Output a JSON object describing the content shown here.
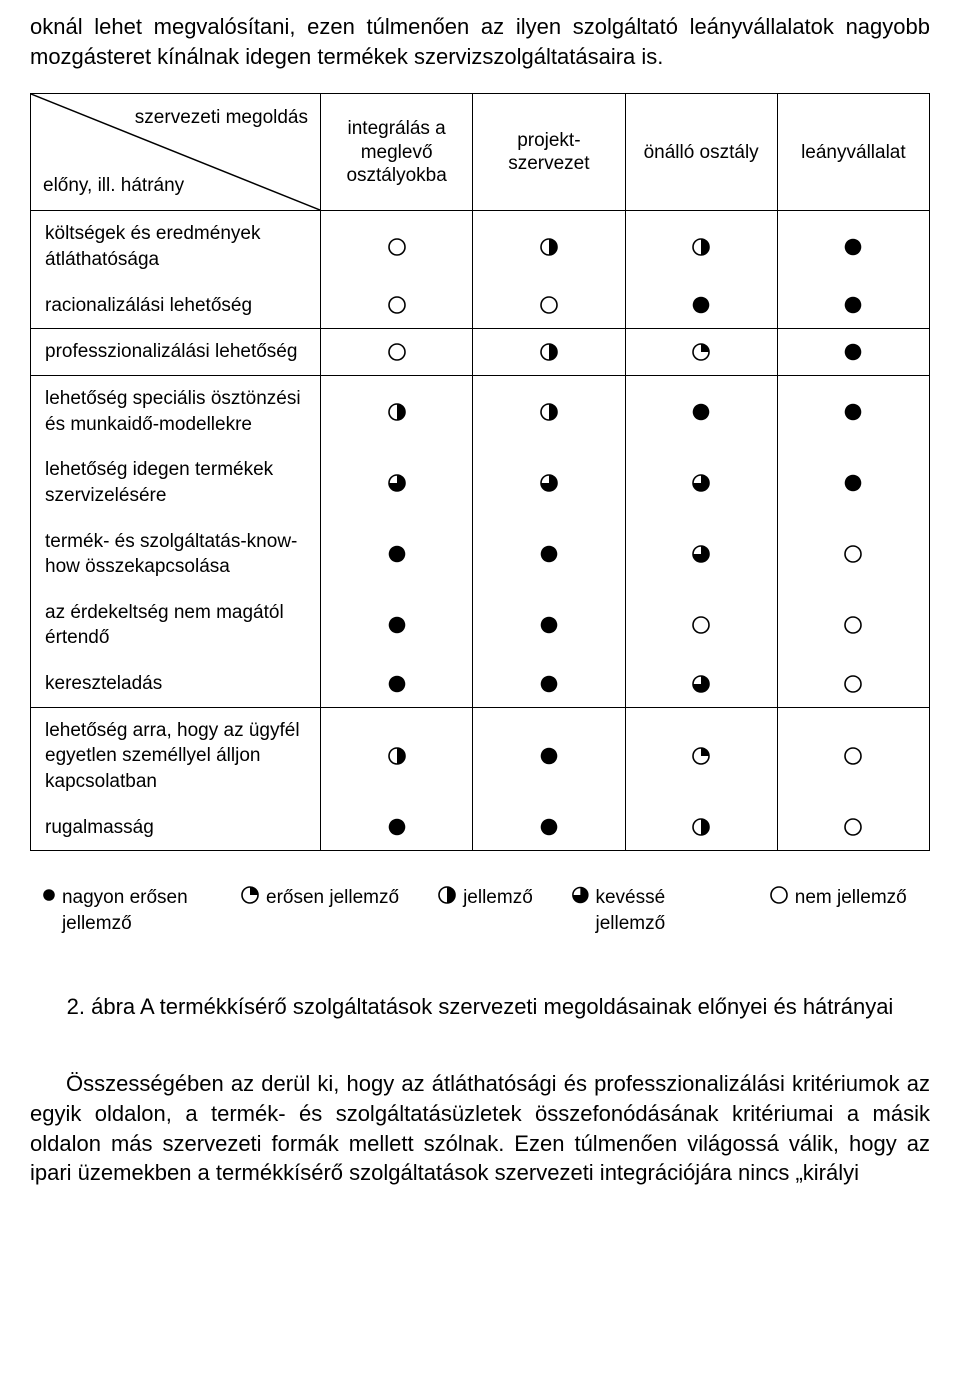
{
  "intro": "oknál lehet megvalósítani, ezen túlmenően az ilyen szolgáltató leányvállalatok nagyobb mozgásteret kínálnak idegen termékek szervizszolgáltatásaira is.",
  "header_top": "szervezeti megoldás",
  "header_bottom": "előny, ill. hátrány",
  "cols": [
    "integrálás a meglevő osztályokba",
    "projekt-szervezet",
    "önálló osztály",
    "leányvállalat"
  ],
  "groups": [
    {
      "rows": [
        {
          "label": "költségek és eredmények átláthatósága",
          "vals": [
            "empty",
            "half",
            "half",
            "full"
          ]
        },
        {
          "label": "racionalizálási lehetőség",
          "vals": [
            "empty",
            "empty",
            "full",
            "full"
          ]
        }
      ]
    },
    {
      "rows": [
        {
          "label": "professzionalizálási lehetőség",
          "vals": [
            "empty",
            "half",
            "quarter",
            "full"
          ]
        }
      ]
    },
    {
      "rows": [
        {
          "label": "lehetőség speciális ösztönzési és munkaidő-modellekre",
          "vals": [
            "half",
            "half",
            "full",
            "full"
          ]
        },
        {
          "label": "lehetőség idegen termékek szervizelésére",
          "vals": [
            "threeq",
            "threeq",
            "threeq",
            "full"
          ]
        },
        {
          "label": "termék- és szolgáltatás-know-how összekapcsolása",
          "vals": [
            "full",
            "full",
            "threeq",
            "empty"
          ]
        },
        {
          "label": "az érdekeltség nem magától értendő",
          "vals": [
            "full",
            "full",
            "empty",
            "empty"
          ]
        },
        {
          "label": "kereszteladás",
          "vals": [
            "full",
            "full",
            "threeq",
            "empty"
          ]
        }
      ]
    },
    {
      "rows": [
        {
          "label": "lehetőség arra, hogy az ügyfél egyetlen személlyel álljon kapcsolatban",
          "vals": [
            "half",
            "full",
            "quarter",
            "empty"
          ]
        },
        {
          "label": "rugalmasság",
          "vals": [
            "full",
            "full",
            "half",
            "empty"
          ]
        }
      ]
    }
  ],
  "legend": [
    {
      "icon": "full",
      "label": "nagyon erősen jellemző"
    },
    {
      "icon": "quarter",
      "label": "erősen jellemző"
    },
    {
      "icon": "half",
      "label": "jellemző"
    },
    {
      "icon": "threeq",
      "label": "kevéssé jellemző"
    },
    {
      "icon": "empty",
      "label": "nem jellemző"
    }
  ],
  "caption": "2. ábra A termékkísérő szolgáltatások szervezeti megoldásainak előnyei és hátrányai",
  "body": "Összességében az derül ki, hogy az átláthatósági és professzionalizálási kritériumok az egyik oldalon, a termék- és szolgáltatásüzletek összefonódásának kritériumai a másik oldalon más szervezeti formák mellett szólnak. Ezen túlmenően világossá válik, hogy az ipari üzemekben a termékkísérő szolgáltatások szervezeti integrációjára nincs „királyi",
  "colors": {
    "stroke": "#000000",
    "bg": "#ffffff"
  }
}
